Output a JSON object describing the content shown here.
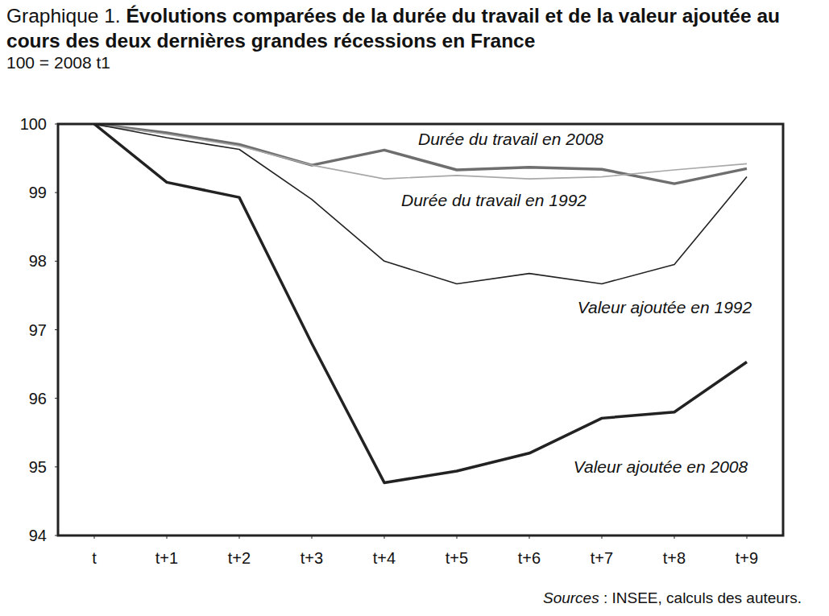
{
  "chart_data": {
    "type": "line",
    "title": "Graphique 1. Évolutions comparées de la durée du travail et de la valeur ajoutée au cours des deux dernières grandes récessions en France",
    "subtitle": "100 = 2008 t1",
    "source": "Sources : INSEE, calculs des auteurs.",
    "categories": [
      "t",
      "t+1",
      "t+2",
      "t+3",
      "t+4",
      "t+5",
      "t+6",
      "t+7",
      "t+8",
      "t+9"
    ],
    "series": [
      {
        "name": "Durée du travail en 2008",
        "color": "#6e6e6e",
        "line_style": "thick",
        "values": [
          100,
          99.87,
          99.7,
          99.4,
          99.62,
          99.33,
          99.37,
          99.34,
          99.13,
          99.35
        ]
      },
      {
        "name": "Durée du travail en 1992",
        "color": "#a8a8a8",
        "line_style": "thin",
        "values": [
          100,
          99.85,
          99.68,
          99.4,
          99.2,
          99.25,
          99.2,
          99.23,
          99.33,
          99.42
        ]
      },
      {
        "name": "Valeur ajoutée en 1992",
        "color": "#222222",
        "line_style": "thin",
        "values": [
          100,
          99.8,
          99.63,
          98.9,
          98.0,
          97.67,
          97.82,
          97.67,
          97.95,
          99.23
        ]
      },
      {
        "name": "Valeur ajoutée en 2008",
        "color": "#222222",
        "line_style": "thick",
        "values": [
          100,
          99.15,
          98.93,
          96.8,
          94.77,
          94.94,
          95.2,
          95.71,
          95.8,
          96.53
        ]
      }
    ],
    "ylim": [
      94,
      100
    ],
    "yticks": [
      94,
      95,
      96,
      97,
      98,
      99,
      100
    ],
    "grid": false
  }
}
